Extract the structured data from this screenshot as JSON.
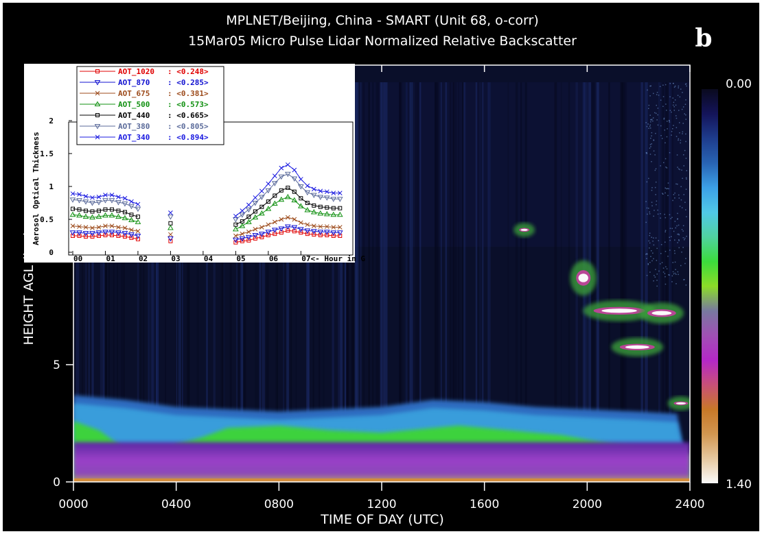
{
  "panel_letter": "b",
  "chart_data": [
    {
      "type": "heatmap",
      "title": "MPLNET/Beijing, China - SMART (Unit 68, o-corr)",
      "subtitle": "15Mar05 Micro Pulse Lidar Normalized Relative Backscatter",
      "xlabel": "TIME OF DAY (UTC)",
      "ylabel": "HEIGHT AGL (km)",
      "xlim": [
        0,
        24
      ],
      "ylim": [
        0,
        10
      ],
      "x_ticks": [
        {
          "value": 0,
          "label": "0000"
        },
        {
          "value": 4,
          "label": "0400"
        },
        {
          "value": 8,
          "label": "0800"
        },
        {
          "value": 12,
          "label": "1200"
        },
        {
          "value": 16,
          "label": "1600"
        },
        {
          "value": 20,
          "label": "2000"
        },
        {
          "value": 24,
          "label": "2400"
        }
      ],
      "y_ticks": [
        {
          "value": 0,
          "label": "0"
        },
        {
          "value": 5,
          "label": "5"
        }
      ],
      "colorbar": {
        "min_label": "0.00",
        "max_label": "1.40",
        "min": 0.0,
        "max": 1.4,
        "colors": [
          "#0a0a1e",
          "#14145a",
          "#1e3c8c",
          "#2864b4",
          "#3ca0e6",
          "#50c8e6",
          "#50d2a0",
          "#3cdc3c",
          "#8cdc28",
          "#7878a0",
          "#a050b4",
          "#b428c8",
          "#c85078",
          "#c87828",
          "#d29650",
          "#e6c8a0",
          "#fafafa"
        ]
      },
      "features": {
        "boundary_layer_top_km": [
          [
            0,
            3.7
          ],
          [
            2,
            3.5
          ],
          [
            4,
            3.2
          ],
          [
            6,
            3.1
          ],
          [
            8,
            3.0
          ],
          [
            10,
            3.1
          ],
          [
            12,
            3.2
          ],
          [
            14,
            3.5
          ],
          [
            16,
            3.4
          ],
          [
            18,
            3.2
          ],
          [
            20,
            3.1
          ],
          [
            22,
            3.0
          ],
          [
            23.5,
            2.9
          ]
        ],
        "green_layer_top_km": [
          [
            0,
            2.6
          ],
          [
            1,
            2.2
          ],
          [
            2,
            1.4
          ],
          [
            3,
            1.0
          ],
          [
            3.5,
            1.2
          ],
          [
            4,
            1.6
          ],
          [
            5,
            1.9
          ],
          [
            6,
            2.3
          ],
          [
            8,
            2.4
          ],
          [
            10,
            2.2
          ],
          [
            12,
            2.1
          ],
          [
            14,
            2.3
          ],
          [
            15,
            2.4
          ],
          [
            17,
            2.2
          ],
          [
            19,
            2.0
          ],
          [
            21,
            1.6
          ],
          [
            23,
            1.3
          ],
          [
            24,
            1.2
          ]
        ],
        "clouds": [
          {
            "x0": 20,
            "x1": 22.5,
            "y0": 7.0,
            "y1": 7.6
          },
          {
            "x0": 22.2,
            "x1": 23.6,
            "y0": 6.9,
            "y1": 7.5
          },
          {
            "x0": 21.1,
            "x1": 22.8,
            "y0": 5.5,
            "y1": 6.0
          },
          {
            "x0": 19.5,
            "x1": 20.2,
            "y0": 8.1,
            "y1": 9.3
          },
          {
            "x0": 23.3,
            "x1": 24,
            "y0": 3.2,
            "y1": 3.5
          },
          {
            "x0": 17.3,
            "x1": 17.8,
            "y0": 10.6,
            "y1": 10.9
          }
        ]
      }
    },
    {
      "type": "line",
      "xlabel": "<- Hour in G",
      "ylabel": "Aerosol Optical Thickness",
      "xlim": [
        0,
        8.3
      ],
      "ylim": [
        0,
        2
      ],
      "x_ticks": [
        "00",
        "01",
        "02",
        "03",
        "04",
        "05",
        "06",
        "07"
      ],
      "y_ticks": [
        "0",
        "0.5",
        "1",
        "1.5",
        "2"
      ],
      "series": [
        {
          "name": "AOT_1020",
          "value_label": ": <0.248>",
          "color": "#e00000",
          "marker": "square",
          "x": [
            0,
            0.2,
            0.4,
            0.6,
            0.8,
            1.0,
            1.2,
            1.4,
            1.6,
            1.8,
            2.0,
            3.0,
            5.0,
            5.2,
            5.4,
            5.6,
            5.8,
            6.0,
            6.2,
            6.4,
            6.6,
            6.8,
            7.0,
            7.2,
            7.4,
            7.6,
            7.8,
            8.0,
            8.2
          ],
          "y": [
            0.25,
            0.25,
            0.24,
            0.24,
            0.25,
            0.26,
            0.26,
            0.25,
            0.24,
            0.22,
            0.2,
            0.17,
            0.15,
            0.17,
            0.18,
            0.21,
            0.23,
            0.26,
            0.28,
            0.3,
            0.33,
            0.32,
            0.3,
            0.28,
            0.27,
            0.26,
            0.26,
            0.25,
            0.25
          ]
        },
        {
          "name": "AOT_870",
          "value_label": ": <0.285>",
          "color": "#1010d0",
          "marker": "triangle-down",
          "x": [
            0,
            0.2,
            0.4,
            0.6,
            0.8,
            1.0,
            1.2,
            1.4,
            1.6,
            1.8,
            2.0,
            3.0,
            5.0,
            5.2,
            5.4,
            5.6,
            5.8,
            6.0,
            6.2,
            6.4,
            6.6,
            6.8,
            7.0,
            7.2,
            7.4,
            7.6,
            7.8,
            8.0,
            8.2
          ],
          "y": [
            0.3,
            0.3,
            0.29,
            0.29,
            0.3,
            0.31,
            0.31,
            0.3,
            0.29,
            0.27,
            0.25,
            0.21,
            0.19,
            0.21,
            0.23,
            0.26,
            0.28,
            0.31,
            0.34,
            0.36,
            0.39,
            0.38,
            0.35,
            0.33,
            0.32,
            0.31,
            0.31,
            0.3,
            0.3
          ]
        },
        {
          "name": "AOT_675",
          "value_label": ": <0.381>",
          "color": "#9c4a1a",
          "marker": "x",
          "x": [
            0,
            0.2,
            0.4,
            0.6,
            0.8,
            1.0,
            1.2,
            1.4,
            1.6,
            1.8,
            2.0,
            3.0,
            5.0,
            5.2,
            5.4,
            5.6,
            5.8,
            6.0,
            6.2,
            6.4,
            6.6,
            6.8,
            7.0,
            7.2,
            7.4,
            7.6,
            7.8,
            8.0,
            8.2
          ],
          "y": [
            0.4,
            0.39,
            0.38,
            0.37,
            0.38,
            0.4,
            0.4,
            0.38,
            0.37,
            0.34,
            0.32,
            0.27,
            0.25,
            0.28,
            0.31,
            0.35,
            0.38,
            0.42,
            0.46,
            0.5,
            0.53,
            0.5,
            0.45,
            0.42,
            0.4,
            0.39,
            0.39,
            0.38,
            0.38
          ]
        },
        {
          "name": "AOT_500",
          "value_label": ": <0.573>",
          "color": "#109010",
          "marker": "triangle-up",
          "x": [
            0,
            0.2,
            0.4,
            0.6,
            0.8,
            1.0,
            1.2,
            1.4,
            1.6,
            1.8,
            2.0,
            3.0,
            5.0,
            5.2,
            5.4,
            5.6,
            5.8,
            6.0,
            6.2,
            6.4,
            6.6,
            6.8,
            7.0,
            7.2,
            7.4,
            7.6,
            7.8,
            8.0,
            8.2
          ],
          "y": [
            0.57,
            0.56,
            0.54,
            0.53,
            0.54,
            0.56,
            0.56,
            0.54,
            0.52,
            0.49,
            0.46,
            0.37,
            0.35,
            0.4,
            0.46,
            0.53,
            0.59,
            0.66,
            0.74,
            0.8,
            0.84,
            0.79,
            0.7,
            0.64,
            0.61,
            0.59,
            0.58,
            0.57,
            0.57
          ]
        },
        {
          "name": "AOT_440",
          "value_label": ": <0.665>",
          "color": "#000000",
          "marker": "square",
          "x": [
            0,
            0.2,
            0.4,
            0.6,
            0.8,
            1.0,
            1.2,
            1.4,
            1.6,
            1.8,
            2.0,
            3.0,
            5.0,
            5.2,
            5.4,
            5.6,
            5.8,
            6.0,
            6.2,
            6.4,
            6.6,
            6.8,
            7.0,
            7.2,
            7.4,
            7.6,
            7.8,
            8.0,
            8.2
          ],
          "y": [
            0.66,
            0.65,
            0.63,
            0.62,
            0.63,
            0.65,
            0.65,
            0.63,
            0.61,
            0.57,
            0.54,
            0.44,
            0.42,
            0.47,
            0.54,
            0.62,
            0.69,
            0.77,
            0.86,
            0.94,
            0.98,
            0.92,
            0.82,
            0.75,
            0.71,
            0.69,
            0.68,
            0.67,
            0.67
          ]
        },
        {
          "name": "AOT_380",
          "value_label": ": <0.805>",
          "color": "#5a6a9a",
          "marker": "triangle-down",
          "x": [
            0,
            0.2,
            0.4,
            0.6,
            0.8,
            1.0,
            1.2,
            1.4,
            1.6,
            1.8,
            2.0,
            3.0,
            5.0,
            5.2,
            5.4,
            5.6,
            5.8,
            6.0,
            6.2,
            6.4,
            6.6,
            6.8,
            7.0,
            7.2,
            7.4,
            7.6,
            7.8,
            8.0,
            8.2
          ],
          "y": [
            0.8,
            0.79,
            0.77,
            0.75,
            0.76,
            0.79,
            0.79,
            0.76,
            0.74,
            0.7,
            0.66,
            0.54,
            0.5,
            0.57,
            0.65,
            0.75,
            0.84,
            0.94,
            1.05,
            1.15,
            1.19,
            1.12,
            1.0,
            0.91,
            0.87,
            0.84,
            0.83,
            0.81,
            0.81
          ]
        },
        {
          "name": "AOT_340",
          "value_label": ": <0.894>",
          "color": "#1818e0",
          "marker": "x",
          "x": [
            0,
            0.2,
            0.4,
            0.6,
            0.8,
            1.0,
            1.2,
            1.4,
            1.6,
            1.8,
            2.0,
            3.0,
            5.0,
            5.2,
            5.4,
            5.6,
            5.8,
            6.0,
            6.2,
            6.4,
            6.6,
            6.8,
            7.0,
            7.2,
            7.4,
            7.6,
            7.8,
            8.0,
            8.2
          ],
          "y": [
            0.89,
            0.88,
            0.85,
            0.83,
            0.84,
            0.87,
            0.87,
            0.84,
            0.82,
            0.77,
            0.73,
            0.6,
            0.55,
            0.63,
            0.72,
            0.83,
            0.93,
            1.04,
            1.16,
            1.28,
            1.33,
            1.25,
            1.11,
            1.01,
            0.96,
            0.93,
            0.92,
            0.9,
            0.9
          ]
        }
      ]
    }
  ]
}
